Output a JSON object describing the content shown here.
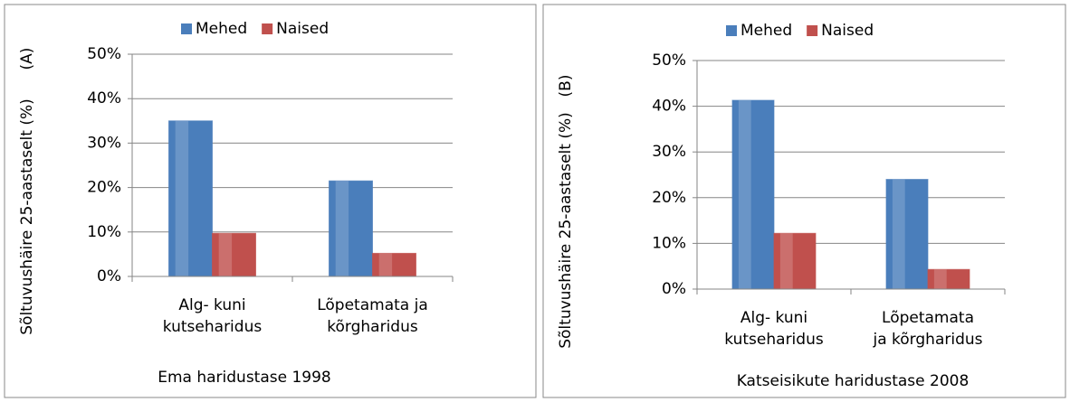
{
  "chart_data": [
    {
      "type": "bar",
      "panel_label": "(A)",
      "ylabel": "Sõltuvushäire  25-aastaselt (%)",
      "xlabel": "Ema haridustase 1998",
      "categories": [
        "Alg- kuni\nkutseharidus",
        "Lõpetamata ja\nkõrgharidus"
      ],
      "series": [
        {
          "name": "Mehed",
          "color": "#4a7ebb",
          "values": [
            35,
            21.5
          ]
        },
        {
          "name": "Naised",
          "color": "#c0504d",
          "values": [
            9.7,
            5.2
          ]
        }
      ],
      "ylim": [
        0,
        50
      ],
      "yticks": [
        {
          "value": 0,
          "label": "0%"
        },
        {
          "value": 10,
          "label": "10%"
        },
        {
          "value": 20,
          "label": "20%"
        },
        {
          "value": 30,
          "label": "30%"
        },
        {
          "value": 40,
          "label": "40%"
        },
        {
          "value": 50,
          "label": "50%"
        }
      ],
      "legend": "top"
    },
    {
      "type": "bar",
      "panel_label": "(B)",
      "ylabel": "Sõltuvushäire  25-aastaselt (%)",
      "xlabel": "Katseisikute haridustase 2008",
      "categories": [
        "Alg- kuni\nkutseharidus",
        "Lõpetamata\nja kõrgharidus"
      ],
      "series": [
        {
          "name": "Mehed",
          "color": "#4a7ebb",
          "values": [
            41.3,
            24
          ]
        },
        {
          "name": "Naised",
          "color": "#c0504d",
          "values": [
            12.2,
            4.3
          ]
        }
      ],
      "ylim": [
        0,
        50
      ],
      "yticks": [
        {
          "value": 0,
          "label": "0%"
        },
        {
          "value": 10,
          "label": "10%"
        },
        {
          "value": 20,
          "label": "20%"
        },
        {
          "value": 30,
          "label": "30%"
        },
        {
          "value": 40,
          "label": "40%"
        },
        {
          "value": 50,
          "label": "50%"
        }
      ],
      "legend": "top"
    }
  ]
}
